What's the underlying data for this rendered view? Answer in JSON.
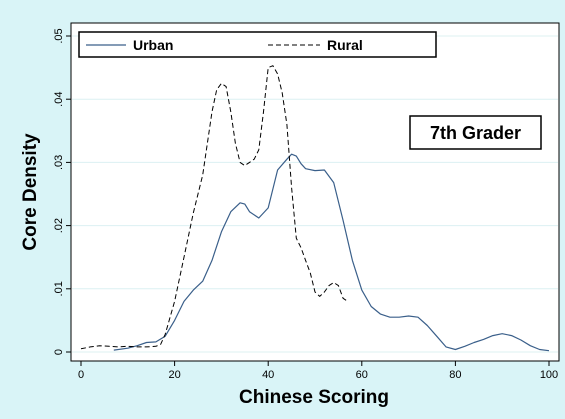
{
  "chart_data": {
    "type": "line",
    "xlabel": "Chinese Scoring",
    "ylabel": "Core Density",
    "xlim": [
      0,
      100
    ],
    "ylim": [
      0,
      0.05
    ],
    "x_ticks": [
      0,
      20,
      40,
      60,
      80,
      100
    ],
    "x_tick_labels": [
      "0",
      "20",
      "40",
      "60",
      "80",
      "100"
    ],
    "y_ticks": [
      0,
      0.01,
      0.02,
      0.03,
      0.04,
      0.05
    ],
    "y_tick_labels": [
      "0",
      ".01",
      ".02",
      ".03",
      ".04",
      ".05"
    ],
    "grid": "horizontal",
    "legend_position": "top",
    "annotation": "7th Grader",
    "colors": {
      "background": "#d9f4f7",
      "plot_area": "#ffffff",
      "grid": "#dcf0f2",
      "urban": "#3a5f8a",
      "rural": "#000000"
    },
    "series": [
      {
        "name": "Urban",
        "style": "solid",
        "x": [
          7,
          10,
          12,
          14,
          16,
          18,
          20,
          22,
          24,
          26,
          28,
          30,
          32,
          34,
          35,
          36,
          38,
          40,
          42,
          44,
          45,
          46,
          47,
          48,
          50,
          52,
          54,
          56,
          58,
          60,
          62,
          64,
          66,
          68,
          70,
          72,
          74,
          76,
          78,
          80,
          82,
          84,
          86,
          88,
          90,
          92,
          94,
          96,
          98,
          100
        ],
        "y": [
          0.0003,
          0.0006,
          0.001,
          0.0015,
          0.0016,
          0.0025,
          0.005,
          0.008,
          0.0098,
          0.0112,
          0.0145,
          0.019,
          0.0222,
          0.0236,
          0.0234,
          0.0222,
          0.0212,
          0.0228,
          0.0288,
          0.0305,
          0.0313,
          0.031,
          0.0298,
          0.029,
          0.0287,
          0.0288,
          0.0268,
          0.0208,
          0.0145,
          0.0098,
          0.0072,
          0.006,
          0.0055,
          0.0055,
          0.0057,
          0.0055,
          0.0042,
          0.0025,
          0.0008,
          0.0004,
          0.0009,
          0.0015,
          0.002,
          0.0026,
          0.0029,
          0.0026,
          0.0019,
          0.001,
          0.0004,
          0.0002
        ]
      },
      {
        "name": "Rural",
        "style": "dashed",
        "x": [
          0,
          2,
          4,
          6,
          8,
          10,
          12,
          14,
          16,
          17,
          18,
          20,
          22,
          24,
          26,
          28,
          29,
          30,
          31,
          32,
          33,
          34,
          35,
          36,
          37,
          38,
          39,
          40,
          41,
          42,
          43,
          44,
          45,
          46,
          47,
          48,
          49,
          50,
          51,
          52,
          53,
          54,
          55,
          56,
          57
        ],
        "y": [
          0.0005,
          0.0008,
          0.001,
          0.0009,
          0.0008,
          0.0009,
          0.0008,
          0.0008,
          0.0009,
          0.0012,
          0.0028,
          0.008,
          0.015,
          0.022,
          0.028,
          0.038,
          0.0415,
          0.0425,
          0.042,
          0.038,
          0.033,
          0.03,
          0.0295,
          0.03,
          0.0305,
          0.032,
          0.038,
          0.045,
          0.0453,
          0.044,
          0.041,
          0.036,
          0.026,
          0.018,
          0.0165,
          0.0145,
          0.0125,
          0.0095,
          0.0088,
          0.0095,
          0.0105,
          0.011,
          0.0105,
          0.0085,
          0.008
        ]
      }
    ]
  }
}
